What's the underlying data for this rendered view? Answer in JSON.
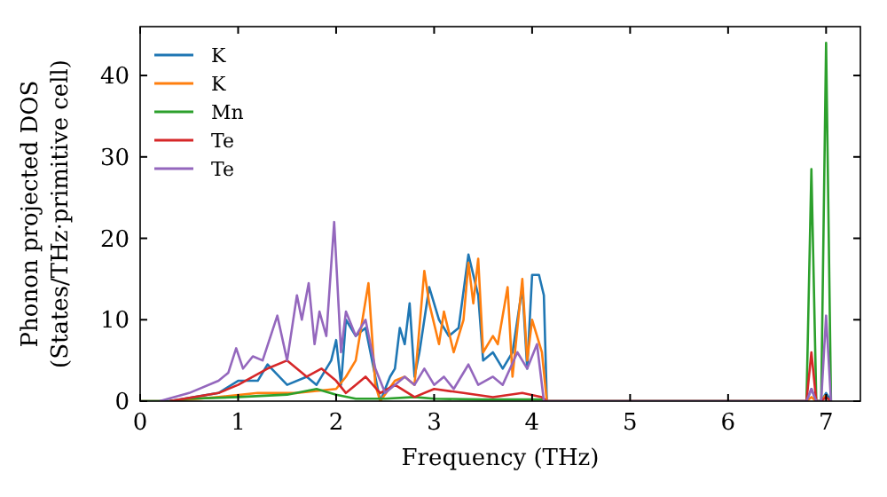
{
  "chart_data": {
    "type": "line",
    "xlabel": "Frequency (THz)",
    "ylabel": "Phonon projected DOS\n(States/THz·primitive cell)",
    "xlim": [
      0,
      7.35
    ],
    "ylim": [
      0,
      46
    ],
    "xticks": [
      0,
      1,
      2,
      3,
      4,
      5,
      6,
      7
    ],
    "yticks": [
      0,
      10,
      20,
      30,
      40
    ],
    "grid": false,
    "legend": "top left",
    "marker": "none",
    "line_style": "solid",
    "series": [
      {
        "name": "K",
        "color": "#1f77b4",
        "x": [
          0,
          0.3,
          0.8,
          1.0,
          1.2,
          1.3,
          1.5,
          1.7,
          1.8,
          1.95,
          2.0,
          2.05,
          2.1,
          2.2,
          2.3,
          2.4,
          2.45,
          2.55,
          2.6,
          2.65,
          2.7,
          2.75,
          2.8,
          2.85,
          2.95,
          3.05,
          3.15,
          3.25,
          3.35,
          3.45,
          3.5,
          3.6,
          3.7,
          3.8,
          3.9,
          3.95,
          4.0,
          4.07,
          4.12,
          4.15,
          6.8,
          6.85,
          6.9,
          6.95,
          7.0,
          7.05
        ],
        "values": [
          0,
          0,
          1,
          2.5,
          2.5,
          4.5,
          2,
          3,
          2,
          5,
          7.5,
          2,
          10,
          8,
          9,
          3,
          0,
          3,
          4,
          9,
          7,
          12,
          3,
          6,
          14,
          10,
          8,
          9,
          18,
          13,
          5,
          6,
          4,
          6,
          14,
          4,
          15.5,
          15.5,
          13,
          0,
          0,
          1.5,
          0,
          0,
          1,
          0
        ]
      },
      {
        "name": "K",
        "color": "#ff7f0e",
        "x": [
          0,
          0.3,
          0.8,
          1.2,
          1.6,
          2.0,
          2.1,
          2.2,
          2.33,
          2.4,
          2.45,
          2.6,
          2.7,
          2.8,
          2.9,
          2.95,
          3.05,
          3.1,
          3.2,
          3.3,
          3.35,
          3.4,
          3.45,
          3.5,
          3.6,
          3.65,
          3.75,
          3.8,
          3.9,
          3.95,
          4.0,
          4.1,
          4.15,
          6.8,
          6.85,
          6.9,
          6.95,
          7.0
        ],
        "values": [
          0,
          0,
          0.5,
          1,
          1,
          1.5,
          3,
          5,
          14.5,
          2,
          0,
          2.5,
          3,
          2,
          16,
          12,
          7,
          11,
          6,
          10,
          17,
          12,
          17.5,
          6,
          8,
          7,
          14,
          3,
          15,
          5,
          10,
          6,
          0,
          0,
          0.5,
          0,
          0,
          0.8
        ]
      },
      {
        "name": "Mn",
        "color": "#2ca02c",
        "x": [
          0,
          0.3,
          0.5,
          1.0,
          1.5,
          1.8,
          2.0,
          2.2,
          2.5,
          2.8,
          3.0,
          3.5,
          4.1,
          4.15,
          6.8,
          6.85,
          6.9,
          6.95,
          7.0,
          7.05
        ],
        "values": [
          0,
          0,
          0.3,
          0.5,
          0.8,
          1.5,
          0.8,
          0.3,
          0.3,
          0.5,
          0.3,
          0.2,
          0.2,
          0,
          0,
          28.5,
          0,
          0,
          44,
          0
        ]
      },
      {
        "name": "Te",
        "color": "#d62728",
        "x": [
          0.3,
          0.8,
          1.0,
          1.3,
          1.5,
          1.7,
          1.85,
          2.0,
          2.1,
          2.2,
          2.3,
          2.45,
          2.6,
          2.8,
          3.0,
          3.3,
          3.6,
          3.9,
          4.1,
          4.15,
          6.8,
          6.85,
          6.9,
          6.95,
          7.0,
          7.05
        ],
        "values": [
          0,
          1,
          2,
          4,
          5,
          3,
          4,
          2.5,
          1,
          2,
          3,
          1,
          2,
          0.5,
          1.5,
          1,
          0.5,
          1,
          0.5,
          0,
          0,
          6,
          0,
          0,
          0.5,
          0
        ]
      },
      {
        "name": "Te",
        "color": "#9467bd",
        "x": [
          0.2,
          0.5,
          0.8,
          0.9,
          0.98,
          1.05,
          1.15,
          1.25,
          1.4,
          1.5,
          1.6,
          1.65,
          1.72,
          1.78,
          1.83,
          1.9,
          1.98,
          2.05,
          2.1,
          2.2,
          2.3,
          2.4,
          2.5,
          2.6,
          2.7,
          2.8,
          2.9,
          3.0,
          3.1,
          3.2,
          3.35,
          3.45,
          3.6,
          3.7,
          3.85,
          3.95,
          4.05,
          4.12,
          6.8,
          6.85,
          6.9,
          6.95,
          7.0,
          7.05
        ],
        "values": [
          0,
          1,
          2.5,
          3.5,
          6.5,
          4,
          5.5,
          5,
          10.5,
          5,
          13,
          10,
          14.5,
          7,
          11,
          8,
          22,
          6,
          11,
          8,
          10,
          4,
          1,
          2,
          3,
          2,
          4,
          2,
          3,
          1.5,
          4.5,
          2,
          3,
          2,
          6,
          4,
          7,
          0,
          0,
          1.5,
          0,
          0,
          10.5,
          0
        ]
      }
    ]
  }
}
